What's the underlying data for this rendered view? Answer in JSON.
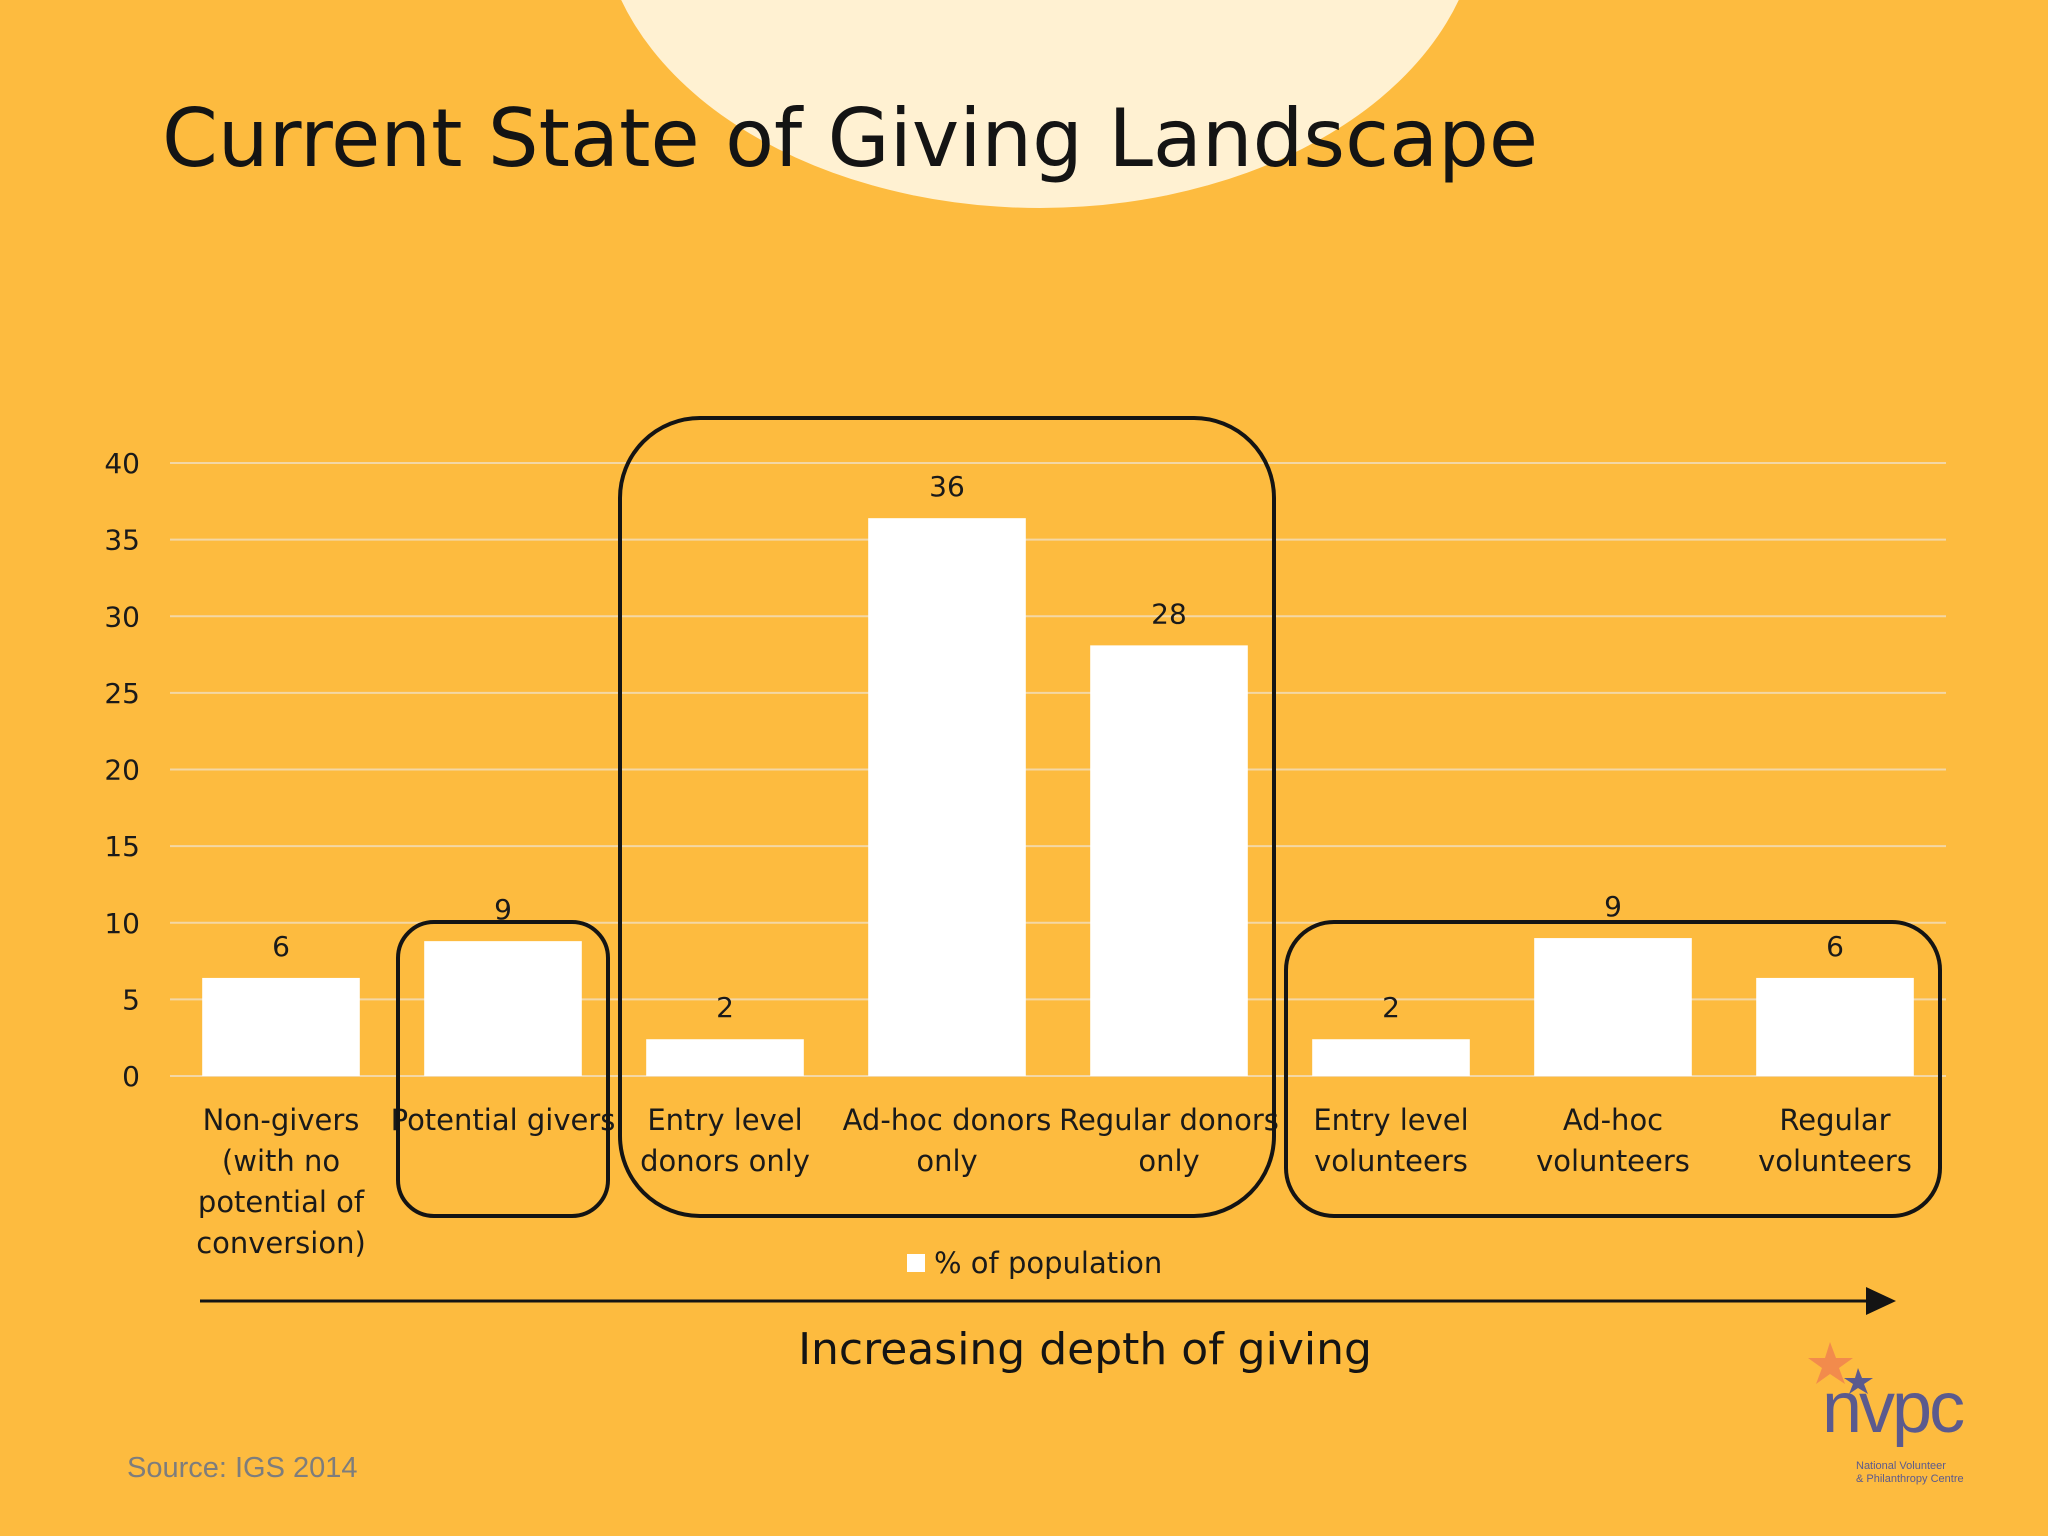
{
  "slide": {
    "title": "Current State of Giving Landscape",
    "depth_label": "Increasing depth of giving",
    "source": "Source: IGS 2014",
    "bg_color": "#FDBB3F",
    "accent_circle_color": "#FFF1D2"
  },
  "logo": {
    "text": "nvpc",
    "subtitle_line1": "National Volunteer",
    "subtitle_line2": "& Philanthropy Centre",
    "icon": "star-icon"
  },
  "chart_data": {
    "type": "bar",
    "categories": [
      [
        "Non-givers",
        "(with no",
        "potential of",
        "conversion)"
      ],
      [
        "Potential givers"
      ],
      [
        "Entry level",
        "donors only"
      ],
      [
        "Ad-hoc donors",
        "only"
      ],
      [
        "Regular donors",
        "only"
      ],
      [
        "Entry level",
        "volunteers"
      ],
      [
        "Ad-hoc",
        "volunteers"
      ],
      [
        "Regular",
        "volunteers"
      ]
    ],
    "series": [
      {
        "name": "% of population",
        "values": [
          6,
          9,
          2,
          36,
          28,
          2,
          9,
          6
        ],
        "color": "#FFFFFF"
      }
    ],
    "bar_heights": [
      6.4,
      8.8,
      2.4,
      36.4,
      28.1,
      2.4,
      9.0,
      6.4
    ],
    "yticks": [
      0,
      5,
      10,
      15,
      20,
      25,
      30,
      35,
      40
    ],
    "ylim": [
      0,
      40
    ],
    "grid": true,
    "legend_position": "bottom",
    "groups": [
      {
        "from": 1,
        "to": 1
      },
      {
        "from": 2,
        "to": 4
      },
      {
        "from": 5,
        "to": 7
      }
    ]
  }
}
